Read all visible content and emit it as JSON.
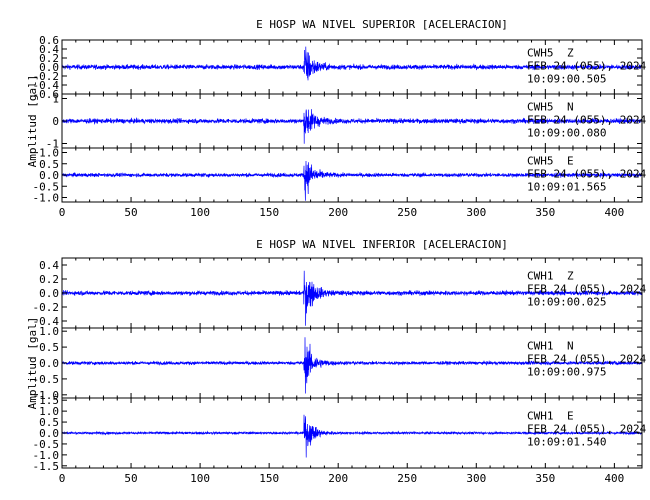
{
  "chart_data": [
    {
      "type": "line",
      "title": "E HOSP WA NIVEL SUPERIOR [ACELERACION]",
      "ylabel": "Amplitud [gal]",
      "xlabel": "",
      "xlim": [
        0,
        420
      ],
      "x_ticks": [
        "0",
        "50",
        "100",
        "150",
        "200",
        "250",
        "300",
        "350",
        "400"
      ],
      "event_time": 175,
      "panels": [
        {
          "station": "CWH5",
          "component": "Z",
          "date": "FEB 24 (055), 2024",
          "time": "10:09:00.505",
          "ylim": [
            -0.6,
            0.6
          ],
          "y_ticks": [
            "0.6",
            "0.4",
            "0.2",
            "0.0",
            "-0.2",
            "-0.4",
            "-0.6"
          ],
          "noise_amplitude": 0.05,
          "peak_amplitude": 0.55,
          "color": "#0000ff"
        },
        {
          "station": "CWH5",
          "component": "N",
          "date": "FEB 24 (055), 2024",
          "time": "10:09:00.080",
          "ylim": [
            -1.2,
            1.2
          ],
          "y_ticks": [
            "1",
            "0",
            "-1"
          ],
          "noise_amplitude": 0.1,
          "peak_amplitude": 1.05,
          "color": "#0000ff"
        },
        {
          "station": "CWH5",
          "component": "E",
          "date": "FEB 24 (055), 2024",
          "time": "10:09:01.565",
          "ylim": [
            -1.2,
            1.2
          ],
          "y_ticks": [
            "1.0",
            "0.5",
            "0.0",
            "-0.5",
            "-1.0"
          ],
          "noise_amplitude": 0.08,
          "peak_amplitude": 1.1,
          "color": "#0000ff"
        }
      ]
    },
    {
      "type": "line",
      "title": "E HOSP WA NIVEL INFERIOR [ACELERACION]",
      "ylabel": "Amplitud [gal]",
      "xlabel": "",
      "xlim": [
        0,
        420
      ],
      "x_ticks": [
        "0",
        "50",
        "100",
        "150",
        "200",
        "250",
        "300",
        "350",
        "400"
      ],
      "event_time": 175,
      "panels": [
        {
          "station": "CWH1",
          "component": "Z",
          "date": "FEB 24 (055), 2024",
          "time": "10:09:00.025",
          "ylim": [
            -0.5,
            0.5
          ],
          "y_ticks": [
            "0.4",
            "0.2",
            "0.0",
            "-0.2",
            "-0.4"
          ],
          "noise_amplitude": 0.03,
          "peak_amplitude": 0.45,
          "color": "#0000ff"
        },
        {
          "station": "CWH1",
          "component": "N",
          "date": "FEB 24 (055), 2024",
          "time": "10:09:00.975",
          "ylim": [
            -1.1,
            1.1
          ],
          "y_ticks": [
            "1.0",
            "0.5",
            "0.0",
            "-0.5",
            "-1.0"
          ],
          "noise_amplitude": 0.05,
          "peak_amplitude": 0.9,
          "color": "#0000ff"
        },
        {
          "station": "CWH1",
          "component": "E",
          "date": "FEB 24 (055), 2024",
          "time": "10:09:01.540",
          "ylim": [
            -1.6,
            1.6
          ],
          "y_ticks": [
            "1.5",
            "1.0",
            "0.5",
            "0.0",
            "-0.5",
            "-1.0",
            "-1.5"
          ],
          "noise_amplitude": 0.05,
          "peak_amplitude": 1.1,
          "color": "#0000ff"
        }
      ]
    }
  ]
}
